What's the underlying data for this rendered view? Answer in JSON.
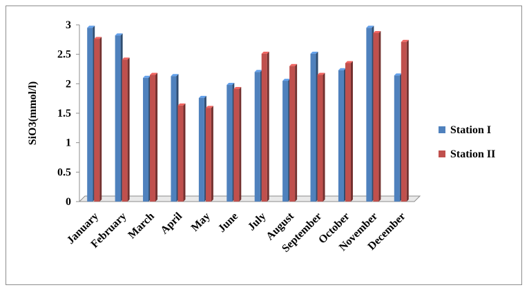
{
  "chart_data": {
    "type": "bar",
    "style": "3d-clustered-column",
    "categories": [
      "January",
      "February",
      "March",
      "April",
      "May",
      "June",
      "July",
      "August",
      "September",
      "October",
      "November",
      "December"
    ],
    "series": [
      {
        "name": "Station I",
        "color": "#4f81bd",
        "values": [
          2.95,
          2.82,
          2.1,
          2.13,
          1.76,
          1.98,
          2.2,
          2.05,
          2.51,
          2.23,
          2.95,
          2.14
        ]
      },
      {
        "name": "Station II",
        "color": "#c0504d",
        "values": [
          2.76,
          2.41,
          2.15,
          1.63,
          1.59,
          1.91,
          2.51,
          2.3,
          2.15,
          2.35,
          2.86,
          2.71
        ]
      }
    ],
    "title": "",
    "xlabel": "",
    "ylabel": "SiO3(mmol/l)",
    "ylim": [
      0,
      3
    ],
    "yticks": [
      "0",
      "0.5",
      "1",
      "1.5",
      "2",
      "2.5",
      "3"
    ],
    "grid": false,
    "legend_position": "right"
  }
}
